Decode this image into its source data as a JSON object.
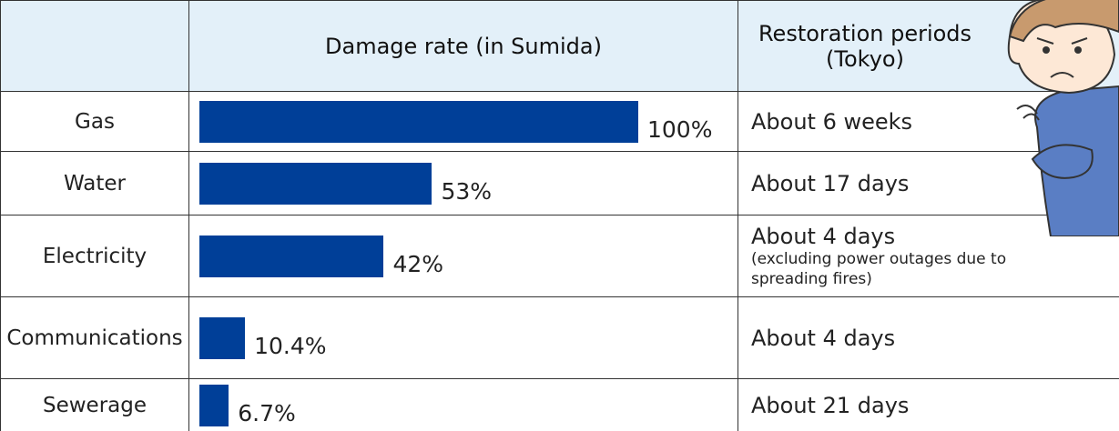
{
  "table": {
    "headers": {
      "damage": "Damage rate (in Sumida)",
      "restoration": [
        "Restoration periods",
        "(Tokyo)"
      ]
    },
    "rows": [
      {
        "label": "Gas",
        "value": 100,
        "value_label": "100%",
        "restoration": "About 6 weeks"
      },
      {
        "label": "Water",
        "value": 53,
        "value_label": "53%",
        "restoration": "About 17 days"
      },
      {
        "label": "Electricity",
        "value": 42,
        "value_label": "42%",
        "restoration": "About 4 days",
        "note": "(excluding power outages due to spreading fires)"
      },
      {
        "label": "Communications",
        "value": 10.4,
        "value_label": "10.4%",
        "restoration": "About 4 days"
      },
      {
        "label": "Sewerage",
        "value": 6.7,
        "value_label": "6.7%",
        "restoration": "About 21 days"
      }
    ]
  }
}
